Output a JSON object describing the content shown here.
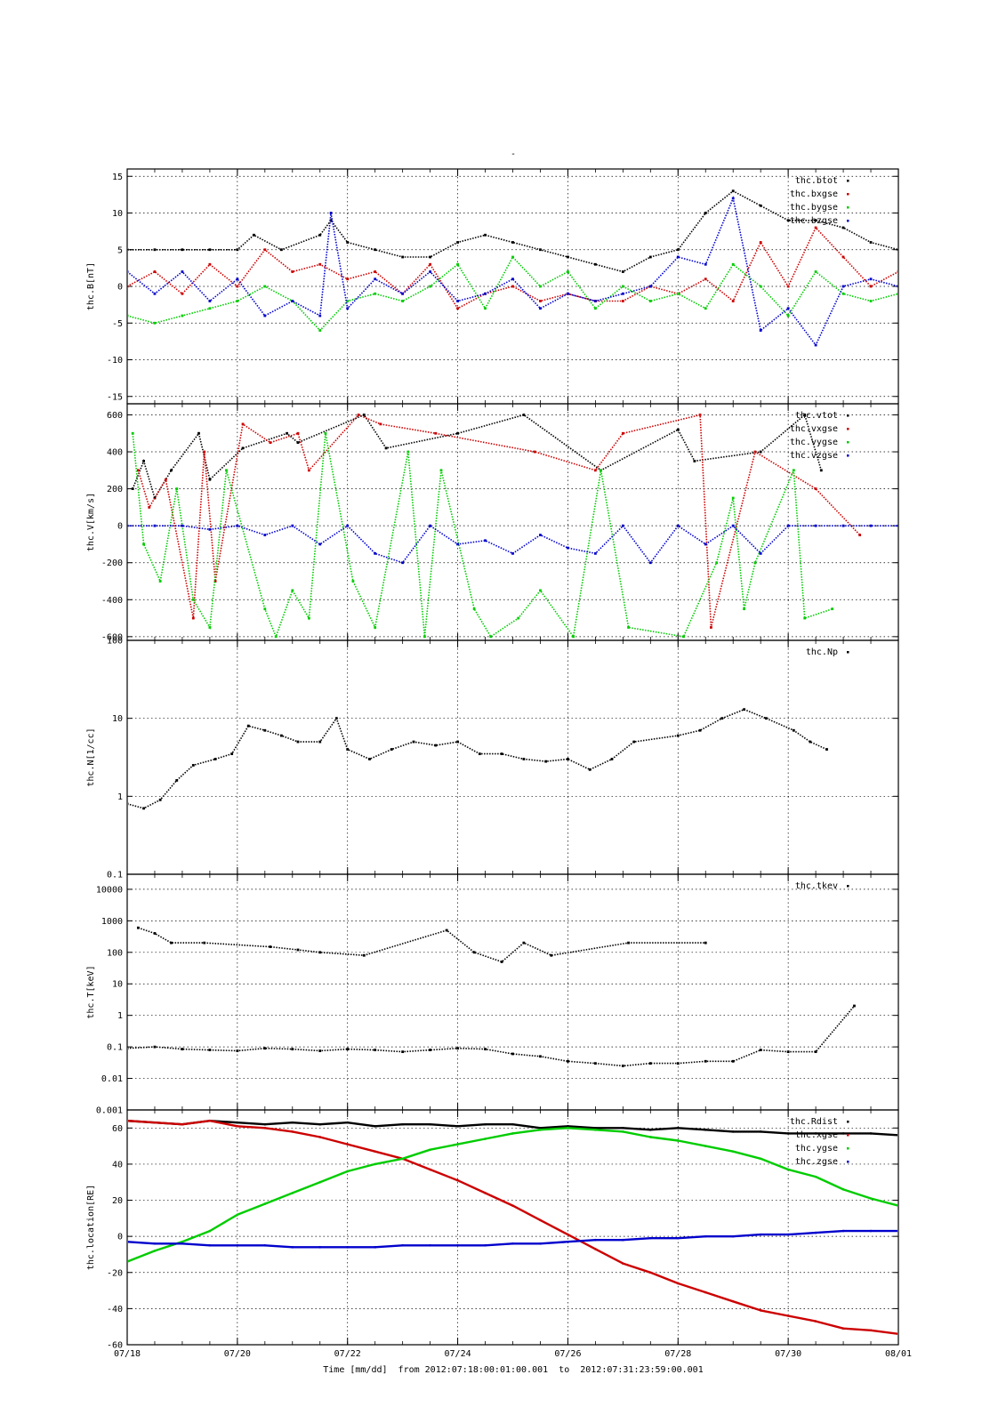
{
  "figure": {
    "top_mark": "-",
    "time_caption": "Time [mm/dd]  from 2012:07:18:00:01:00.001  to  2012:07:31:23:59:00.001"
  },
  "colors": {
    "black": "#000000",
    "red": "#cc0000",
    "green": "#00cc00",
    "blue": "#0000cc"
  },
  "chart_data": [
    {
      "type": "scatter",
      "id": "B",
      "ylabel": "thc.B[nT]",
      "xlim": [
        0,
        14
      ],
      "ylim": [
        -16,
        16
      ],
      "yticks": [
        -15,
        -10,
        -5,
        0,
        5,
        10,
        15
      ],
      "series": [
        {
          "name": "thc.btot",
          "color": "black",
          "x": [
            0,
            0.5,
            1,
            1.5,
            2,
            2.3,
            2.8,
            3.5,
            3.7,
            4,
            4.5,
            5,
            5.5,
            6,
            6.5,
            7,
            7.5,
            8,
            8.5,
            9,
            9.5,
            10,
            10.5,
            11,
            11.5,
            12,
            12.5,
            13,
            13.5,
            14
          ],
          "y": [
            5,
            5,
            5,
            5,
            5,
            7,
            5,
            7,
            9,
            6,
            5,
            4,
            4,
            6,
            7,
            6,
            5,
            4,
            3,
            2,
            4,
            5,
            10,
            13,
            11,
            9,
            9,
            8,
            6,
            5
          ]
        },
        {
          "name": "thc.bxgse",
          "color": "red",
          "x": [
            0,
            0.5,
            1,
            1.5,
            2,
            2.5,
            3,
            3.5,
            4,
            4.5,
            5,
            5.5,
            6,
            6.5,
            7,
            7.5,
            8,
            8.5,
            9,
            9.5,
            10,
            10.5,
            11,
            11.5,
            12,
            12.5,
            13,
            13.5,
            14
          ],
          "y": [
            0,
            2,
            -1,
            3,
            0,
            5,
            2,
            3,
            1,
            2,
            -1,
            3,
            -3,
            -1,
            0,
            -2,
            -1,
            -2,
            -2,
            0,
            -1,
            1,
            -2,
            6,
            0,
            8,
            4,
            0,
            2
          ]
        },
        {
          "name": "thc.bygse",
          "color": "green",
          "x": [
            0,
            0.5,
            1,
            1.5,
            2,
            2.5,
            3,
            3.5,
            4,
            4.5,
            5,
            5.5,
            6,
            6.5,
            7,
            7.5,
            8,
            8.5,
            9,
            9.5,
            10,
            10.5,
            11,
            11.5,
            12,
            12.5,
            13,
            13.5,
            14
          ],
          "y": [
            -4,
            -5,
            -4,
            -3,
            -2,
            0,
            -2,
            -6,
            -2,
            -1,
            -2,
            0,
            3,
            -3,
            4,
            0,
            2,
            -3,
            0,
            -2,
            -1,
            -3,
            3,
            0,
            -4,
            2,
            -1,
            -2,
            -1
          ]
        },
        {
          "name": "thc.bzgse",
          "color": "blue",
          "x": [
            0,
            0.5,
            1,
            1.5,
            2,
            2.5,
            3,
            3.5,
            3.7,
            4,
            4.5,
            5,
            5.5,
            6,
            6.5,
            7,
            7.5,
            8,
            8.5,
            9,
            9.5,
            10,
            10.5,
            11,
            11.5,
            12,
            12.5,
            13,
            13.5,
            14
          ],
          "y": [
            2,
            -1,
            2,
            -2,
            1,
            -4,
            -2,
            -4,
            10,
            -3,
            1,
            -1,
            2,
            -2,
            -1,
            1,
            -3,
            -1,
            -2,
            -1,
            0,
            4,
            3,
            12,
            -6,
            -3,
            -8,
            0,
            1,
            0
          ]
        }
      ]
    },
    {
      "type": "scatter",
      "id": "V",
      "ylabel": "thc.V[km/s]",
      "xlim": [
        0,
        14
      ],
      "ylim": [
        -620,
        660
      ],
      "yticks": [
        -600,
        -400,
        -200,
        0,
        200,
        400,
        600
      ],
      "series": [
        {
          "name": "thc.vtot",
          "color": "black",
          "x": [
            0.1,
            0.3,
            0.5,
            0.8,
            1.3,
            1.5,
            2.1,
            2.9,
            3.1,
            4.3,
            4.7,
            6,
            7.2,
            8.6,
            10,
            10.3,
            11.5,
            12.3,
            12.6
          ],
          "y": [
            200,
            350,
            150,
            300,
            500,
            250,
            420,
            500,
            450,
            600,
            420,
            500,
            600,
            300,
            520,
            350,
            400,
            600,
            300
          ]
        },
        {
          "name": "thc.vxgse",
          "color": "red",
          "x": [
            0.2,
            0.4,
            0.7,
            1.2,
            1.4,
            1.6,
            2.1,
            2.6,
            3.1,
            3.3,
            4.2,
            4.6,
            5.6,
            7.4,
            8.5,
            9,
            10.4,
            10.6,
            11.4,
            12.5,
            13.3
          ],
          "y": [
            300,
            100,
            250,
            -500,
            400,
            -300,
            550,
            450,
            500,
            300,
            600,
            550,
            500,
            400,
            300,
            500,
            600,
            -550,
            400,
            200,
            -50
          ]
        },
        {
          "name": "thc.vygse",
          "color": "green",
          "x": [
            0.1,
            0.3,
            0.6,
            0.9,
            1.2,
            1.5,
            1.8,
            2.5,
            2.7,
            3,
            3.3,
            3.6,
            4.1,
            4.5,
            5.1,
            5.4,
            5.7,
            6.3,
            6.6,
            7.1,
            7.5,
            8.1,
            8.6,
            9.1,
            10.1,
            10.7,
            11,
            11.2,
            11.4,
            12.1,
            12.3,
            12.8
          ],
          "y": [
            500,
            -100,
            -300,
            200,
            -400,
            -550,
            300,
            -450,
            -600,
            -350,
            -500,
            500,
            -300,
            -550,
            400,
            -600,
            300,
            -450,
            -600,
            -500,
            -350,
            -600,
            300,
            -550,
            -600,
            -200,
            150,
            -450,
            -200,
            300,
            -500,
            -450
          ]
        },
        {
          "name": "thc.vzgse",
          "color": "blue",
          "x": [
            0,
            0.5,
            1,
            1.5,
            2,
            2.5,
            3,
            3.5,
            4,
            4.5,
            5,
            5.5,
            6,
            6.5,
            7,
            7.5,
            8,
            8.5,
            9,
            9.5,
            10,
            10.5,
            11,
            11.5,
            12,
            12.5,
            13,
            13.5,
            14
          ],
          "y": [
            0,
            0,
            0,
            -20,
            0,
            -50,
            0,
            -100,
            0,
            -150,
            -200,
            0,
            -100,
            -80,
            -150,
            -50,
            -120,
            -150,
            0,
            -200,
            0,
            -100,
            0,
            -150,
            0,
            0,
            0,
            0,
            0
          ]
        }
      ]
    },
    {
      "type": "scatter",
      "id": "N",
      "ylabel": "thc.N[1/cc]",
      "xlim": [
        0,
        14
      ],
      "ylim": [
        0.1,
        100
      ],
      "yscale": "log",
      "yticks": [
        0.1,
        1,
        10,
        100
      ],
      "series": [
        {
          "name": "thc.Np",
          "color": "black",
          "x": [
            0,
            0.3,
            0.6,
            0.9,
            1.2,
            1.6,
            1.9,
            2.2,
            2.5,
            2.8,
            3.1,
            3.5,
            3.8,
            4,
            4.4,
            4.8,
            5.2,
            5.6,
            6,
            6.4,
            6.8,
            7.2,
            7.6,
            8,
            8.4,
            8.8,
            9.2,
            10,
            10.4,
            10.8,
            11.2,
            11.6,
            12.1,
            12.4,
            12.7
          ],
          "y": [
            0.8,
            0.7,
            0.9,
            1.6,
            2.5,
            3,
            3.5,
            8,
            7,
            6,
            5,
            5,
            10,
            4,
            3,
            4,
            5,
            4.5,
            5,
            3.5,
            3.5,
            3,
            2.8,
            3,
            2.2,
            3,
            5,
            6,
            7,
            10,
            13,
            10,
            7,
            5,
            4
          ]
        }
      ]
    },
    {
      "type": "scatter",
      "id": "T",
      "ylabel": "thc.T[keV]",
      "xlim": [
        0,
        14
      ],
      "ylim": [
        0.001,
        30000
      ],
      "yscale": "log",
      "yticks": [
        0.001,
        0.01,
        0.1,
        1,
        10,
        100,
        1000,
        10000
      ],
      "ytick_labels": [
        "0.001",
        "0.01",
        "0.1",
        "1",
        "10",
        "100",
        "1000",
        "10000"
      ],
      "series": [
        {
          "name": "thc.tkev",
          "color": "black",
          "x": [
            0,
            0.5,
            1,
            1.5,
            2,
            2.5,
            3,
            3.5,
            4,
            4.5,
            5,
            5.5,
            6,
            6.5,
            7,
            7.5,
            8,
            8.5,
            9,
            9.5,
            10,
            10.5,
            11,
            11.5,
            12,
            12.5,
            13.2
          ],
          "y": [
            0.09,
            0.1,
            0.085,
            0.08,
            0.075,
            0.09,
            0.085,
            0.075,
            0.085,
            0.08,
            0.07,
            0.08,
            0.09,
            0.085,
            0.06,
            0.05,
            0.035,
            0.03,
            0.025,
            0.03,
            0.03,
            0.035,
            0.035,
            0.08,
            0.07,
            0.07,
            2
          ]
        },
        {
          "name": "",
          "color": "black",
          "x": [
            0.2,
            0.5,
            0.8,
            1.4,
            2.6,
            3.1,
            3.5,
            4.3,
            5.8,
            6.3,
            6.8,
            7.2,
            7.7,
            9.1,
            10.5
          ],
          "y": [
            600,
            400,
            200,
            200,
            150,
            120,
            100,
            80,
            500,
            100,
            50,
            200,
            80,
            200,
            200
          ]
        }
      ]
    },
    {
      "type": "line",
      "id": "location",
      "ylabel": "thc.location[RE]",
      "xlim": [
        0,
        14
      ],
      "ylim": [
        -60,
        70
      ],
      "yticks": [
        -60,
        -40,
        -20,
        0,
        20,
        40,
        60
      ],
      "series": [
        {
          "name": "thc.Rdist",
          "color": "black",
          "x": [
            0,
            0.5,
            1,
            1.5,
            2,
            2.5,
            3,
            3.5,
            4,
            4.5,
            5,
            5.5,
            6,
            6.5,
            7,
            7.5,
            8,
            8.5,
            9,
            9.5,
            10,
            10.5,
            11,
            11.5,
            12,
            12.5,
            13,
            13.5,
            14
          ],
          "y": [
            64,
            63,
            62,
            64,
            63,
            62,
            63,
            62,
            63,
            61,
            62,
            62,
            61,
            62,
            62,
            60,
            61,
            60,
            60,
            59,
            60,
            59,
            58,
            58,
            57,
            57,
            57,
            57,
            56
          ]
        },
        {
          "name": "thc.xgse",
          "color": "red",
          "x": [
            0,
            0.5,
            1,
            1.5,
            2,
            2.5,
            3,
            3.5,
            4,
            4.5,
            5,
            5.5,
            6,
            6.5,
            7,
            7.5,
            8,
            8.5,
            9,
            9.5,
            10,
            10.5,
            11,
            11.5,
            12,
            12.5,
            13,
            13.5,
            14
          ],
          "y": [
            64,
            63,
            62,
            64,
            61,
            60,
            58,
            55,
            51,
            47,
            43,
            37,
            31,
            24,
            17,
            9,
            1,
            -7,
            -15,
            -20,
            -26,
            -31,
            -36,
            -41,
            -44,
            -47,
            -51,
            -52,
            -54
          ]
        },
        {
          "name": "thc.ygse",
          "color": "green",
          "x": [
            0,
            0.5,
            1,
            1.5,
            2,
            2.5,
            3,
            3.5,
            4,
            4.5,
            5,
            5.5,
            6,
            6.5,
            7,
            7.5,
            8,
            8.5,
            9,
            9.5,
            10,
            10.5,
            11,
            11.5,
            12,
            12.5,
            13,
            13.5,
            14
          ],
          "y": [
            -14,
            -8,
            -3,
            3,
            12,
            18,
            24,
            30,
            36,
            40,
            43,
            48,
            51,
            54,
            57,
            59,
            60,
            59,
            58,
            55,
            53,
            50,
            47,
            43,
            37,
            33,
            26,
            21,
            17
          ]
        },
        {
          "name": "thc.zgse",
          "color": "blue",
          "x": [
            0,
            0.5,
            1,
            1.5,
            2,
            2.5,
            3,
            3.5,
            4,
            4.5,
            5,
            5.5,
            6,
            6.5,
            7,
            7.5,
            8,
            8.5,
            9,
            9.5,
            10,
            10.5,
            11,
            11.5,
            12,
            12.5,
            13,
            13.5,
            14
          ],
          "y": [
            -3,
            -4,
            -4,
            -5,
            -5,
            -5,
            -6,
            -6,
            -6,
            -6,
            -5,
            -5,
            -5,
            -5,
            -4,
            -4,
            -3,
            -2,
            -2,
            -1,
            -1,
            0,
            0,
            1,
            1,
            2,
            3,
            3,
            3
          ]
        }
      ]
    }
  ],
  "x_axis": {
    "tick_positions": [
      0,
      2,
      4,
      6,
      8,
      10,
      12,
      14
    ],
    "tick_labels": [
      "07/18",
      "07/20",
      "07/22",
      "07/24",
      "07/26",
      "07/28",
      "07/30",
      "08/01"
    ]
  }
}
